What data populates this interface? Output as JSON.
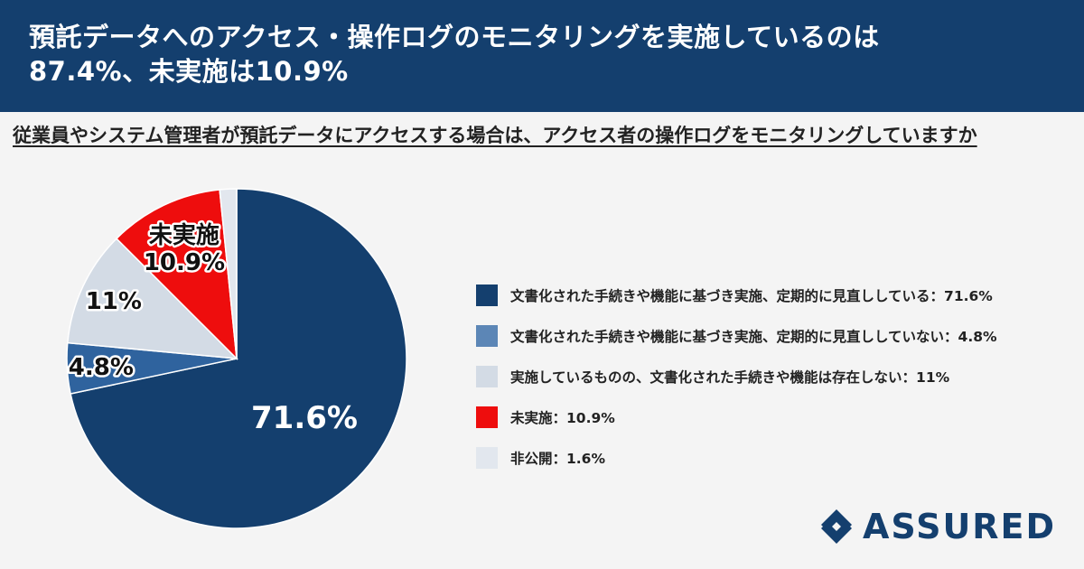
{
  "header": {
    "title_line1": "預託データへのアクセス・操作ログのモニタリングを実施しているのは",
    "title_line2": "87.4%、未実施は10.9%"
  },
  "question": "従業員やシステム管理者が預託データにアクセスする場合は、アクセス者の操作ログをモニタリングしていますか",
  "chart_data": {
    "type": "pie",
    "title": "従業員やシステム管理者が預託データにアクセスする場合は、アクセス者の操作ログをモニタリングしていますか",
    "start": "12 o'clock",
    "direction": "clockwise",
    "legend_position": "right",
    "slices": [
      {
        "label": "文書化された手続きや機能に基づき実施、定期的に見直ししている",
        "value": 71.6,
        "color": "#143f6e",
        "slice_label": "71.6%",
        "legend_text": "文書化された手続きや機能に基づき実施、定期的に見直ししている：71.6%"
      },
      {
        "label": "文書化された手続きや機能に基づき実施、定期的に見直ししていない",
        "value": 4.8,
        "color": "#2f639e",
        "slice_label": "4.8%",
        "legend_text": "文書化された手続きや機能に基づき実施、定期的に見直ししていない：4.8%"
      },
      {
        "label": "実施しているものの、文書化された手続きや機能は存在しない",
        "value": 11,
        "color": "#d3dbe5",
        "slice_label": "11%",
        "legend_text": "実施しているものの、文書化された手続きや機能は存在しない：11%"
      },
      {
        "label": "未実施",
        "value": 10.9,
        "color": "#ee0d0d",
        "slice_label": "未実施\n10.9%",
        "legend_text": "未実施：10.9%"
      },
      {
        "label": "非公開",
        "value": 1.6,
        "color": "#e2e7ee",
        "slice_label": "",
        "legend_text": "非公開：1.6%"
      }
    ]
  },
  "legend_swatch_colors": [
    "#143f6e",
    "#5c86b6",
    "#d3dbe5",
    "#ee0d0d",
    "#e2e7ee"
  ],
  "logo": {
    "text": "ASSURED",
    "color": "#143f6e",
    "icon": "assured-diamond-logo-icon"
  }
}
